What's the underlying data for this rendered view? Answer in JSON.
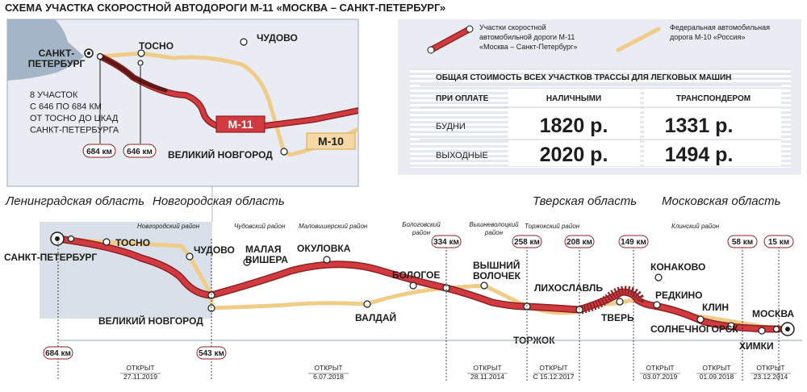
{
  "title": "СХЕМА УЧАСТКА СКОРОСТНОЙ АВТОДОРОГИ М-11 «МОСКВА – САНКТ-ПЕТЕРБУРГ»",
  "colors": {
    "m11_fill": "#d13a3e",
    "m11_border": "#8e2226",
    "m11_dark": "#5e1818",
    "m10": "#efcc88",
    "water": "#a4b5c8",
    "region_box": "#ccd6e2",
    "panel": "#e9ecf2",
    "text": "#1d1d1b"
  },
  "inset": {
    "cities": {
      "spb": "САНКТ-\nПЕТЕРБУРГ",
      "tosno": "ТОСНО",
      "chudovo": "ЧУДОВО",
      "novgorod": "ВЕЛИКИЙ НОВГОРОД"
    },
    "note": "8 УЧАСТОК\nС 646 ПО 684 КМ\nОТ ТОСНО ДО ЦКАД\nСАНКТ-ПЕТЕРБУРГА",
    "km1": "684 км",
    "km2": "646 км",
    "m11_label": "М-11",
    "m10_label": "М-10"
  },
  "legend": {
    "m11_text": "Участки скоростной\nавтомобильной дороги М-11\n«Москва – Санкт-Петербург»",
    "m10_text": "Федеральная автомобильная\nдорога М-10 «Россия»"
  },
  "prices": {
    "title": "ОБЩАЯ СТОИМОСТЬ ВСЕХ УЧАСТКОВ ТРАССЫ ДЛЯ ЛЕГКОВЫХ МАШИН",
    "col_label": "ПРИ ОПЛАТЕ",
    "col_cash": "НАЛИЧНЫМИ",
    "col_transponder": "ТРАНСПОНДЕРОМ",
    "rows": [
      {
        "label": "БУДНИ",
        "cash": "1820 р.",
        "transponder": "1331 р."
      },
      {
        "label": "ВЫХОДНЫЕ",
        "cash": "2020 р.",
        "transponder": "1494 р."
      }
    ]
  },
  "regions": {
    "leningrad": "Ленинградская область",
    "novgorod": "Новгородская область",
    "tver": "Тверская область",
    "moscow": "Московская область"
  },
  "districts": {
    "novgorodsky": "Новгородский район",
    "chudovsky": "Чудовский район",
    "malovishersky": "Маловишерский район",
    "bologovsky": "Бологовский\nрайон",
    "vyshnevolotsky": "Вышневолоцкий\nрайон",
    "torzhoksky": "Торжокский район",
    "klinsky": "Клинский район"
  },
  "cities": {
    "spb": "САНКТ-ПЕТЕРБУРГ",
    "tosno": "ТОСНО",
    "chudovo": "ЧУДОВО",
    "novgorod": "ВЕЛИКИЙ НОВГОРОД",
    "malaya_vishera": "МАЛАЯ\nВИШЕРА",
    "okulovka": "ОКУЛОВКА",
    "valday": "ВАЛДАЙ",
    "bologoe": "БОЛОГОЕ",
    "vyshny_volochek": "ВЫШНИЙ\nВОЛОЧЕК",
    "torzhok": "ТОРЖОК",
    "likhoslavl": "ЛИХОСЛАВЛЬ",
    "tver": "ТВЕРЬ",
    "konakovo": "КОНАКОВО",
    "redkino": "РЕДКИНО",
    "klin": "КЛИН",
    "solnechnogorsk": "СОЛНЕЧНОГОРСК",
    "khimki": "ХИМКИ",
    "moskva": "МОСКВА"
  },
  "km_markers": [
    "684 км",
    "543 км",
    "334 км",
    "258 км",
    "208 км",
    "149 км",
    "58 км",
    "15 км"
  ],
  "segments": [
    {
      "label": "ОТКРЫТ",
      "date": "27.11.2019"
    },
    {
      "label": "ОТКРЫТ",
      "date": "6.07.2018"
    },
    {
      "label": "ОТКРЫТ",
      "date": "28.11.2014"
    },
    {
      "label": "ОТКРЫТ",
      "date": "С 15.12.2017"
    },
    {
      "label": "ОТКРЫТ",
      "date": "03.07.2019"
    },
    {
      "label": "ОТКРЫТ",
      "date": "01.09.2018"
    },
    {
      "label": "ОТКРЫТ",
      "date": "23.12.2014"
    }
  ]
}
